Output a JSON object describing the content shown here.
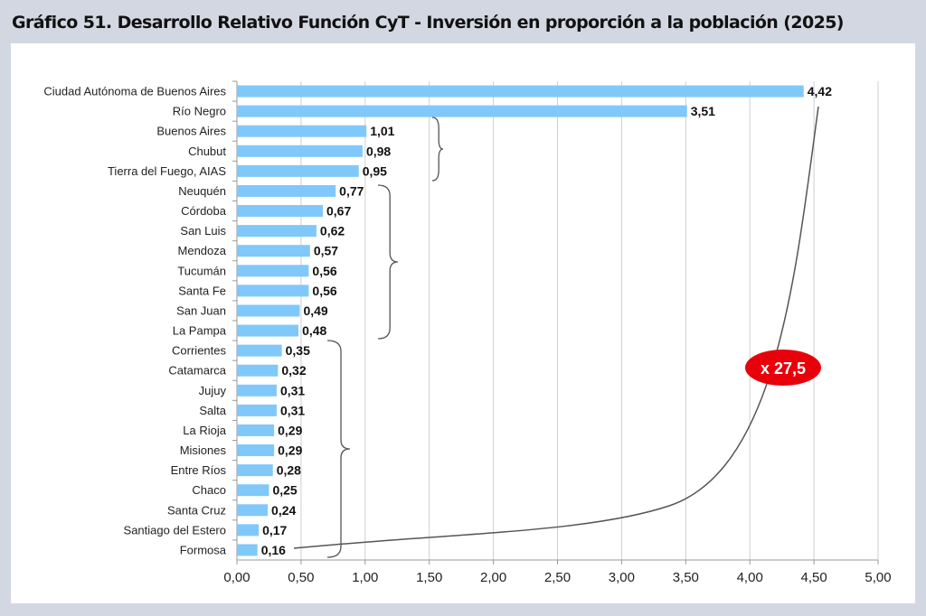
{
  "title": "Gráfico 51. Desarrollo Relativo Función CyT - Inversión en proporción a la población (2025)",
  "chart_data": {
    "type": "bar",
    "orientation": "horizontal",
    "title": "Gráfico 51. Desarrollo Relativo Función CyT - Inversión en proporción a la población (2025)",
    "xlabel": "",
    "ylabel": "",
    "xlim": [
      0,
      5
    ],
    "xticks": [
      "0,00",
      "0,50",
      "1,00",
      "1,50",
      "2,00",
      "2,50",
      "3,00",
      "3,50",
      "4,00",
      "4,50",
      "5,00"
    ],
    "grid": true,
    "bar_color": "#80c8fa",
    "categories": [
      "Ciudad Autónoma de Buenos Aires",
      "Río Negro",
      "Buenos Aires",
      "Chubut",
      "Tierra del Fuego, AIAS",
      "Neuquén",
      "Córdoba",
      "San Luis",
      "Mendoza",
      "Tucumán",
      "Santa Fe",
      "San Juan",
      "La Pampa",
      "Corrientes",
      "Catamarca",
      "Jujuy",
      "Salta",
      "La Rioja",
      "Misiones",
      "Entre Ríos",
      "Chaco",
      "Santa Cruz",
      "Santiago del Estero",
      "Formosa"
    ],
    "values": [
      4.42,
      3.51,
      1.01,
      0.98,
      0.95,
      0.77,
      0.67,
      0.62,
      0.57,
      0.56,
      0.56,
      0.49,
      0.48,
      0.35,
      0.32,
      0.31,
      0.31,
      0.29,
      0.29,
      0.28,
      0.25,
      0.24,
      0.17,
      0.16
    ],
    "value_labels": [
      "4,42",
      "3,51",
      "1,01",
      "0,98",
      "0,95",
      "0,77",
      "0,67",
      "0,62",
      "0,57",
      "0,56",
      "0,56",
      "0,49",
      "0,48",
      "0,35",
      "0,32",
      "0,31",
      "0,31",
      "0,29",
      "0,29",
      "0,28",
      "0,25",
      "0,24",
      "0,17",
      "0,16"
    ],
    "annotation": {
      "text": "x 27,5",
      "color": "#e8000b"
    },
    "groups": [
      [
        2,
        4
      ],
      [
        5,
        12
      ],
      [
        13,
        23
      ]
    ]
  }
}
